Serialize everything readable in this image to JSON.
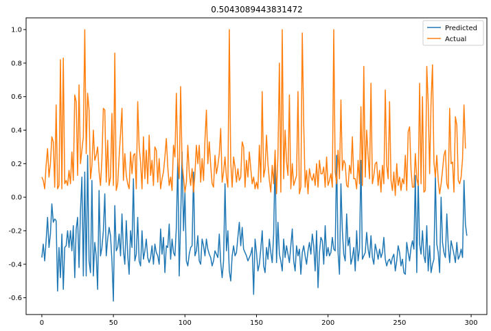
{
  "chart_data": {
    "type": "line",
    "title": "0.5043089443831472",
    "xlabel": "",
    "ylabel": "",
    "xlim": [
      -11,
      311
    ],
    "ylim": [
      -0.7,
      1.07
    ],
    "xticks": [
      0,
      50,
      100,
      150,
      200,
      250,
      300
    ],
    "yticks": [
      -0.6,
      -0.4,
      -0.2,
      0.0,
      0.2,
      0.4,
      0.6,
      0.8,
      1.0
    ],
    "grid": false,
    "legend": "top-right",
    "series": [
      {
        "name": "Predicted",
        "color": "#1f77b4",
        "values": [
          -0.36,
          -0.28,
          -0.38,
          -0.26,
          -0.12,
          -0.3,
          -0.22,
          -0.04,
          -0.15,
          -0.13,
          -0.14,
          -0.56,
          -0.3,
          -0.48,
          -0.22,
          -0.55,
          -0.3,
          -0.29,
          -0.2,
          -0.3,
          -0.2,
          -0.32,
          -0.17,
          -0.48,
          -0.19,
          -0.12,
          -0.42,
          -0.08,
          0.12,
          -0.47,
          0.15,
          -0.47,
          0.25,
          -0.38,
          -0.45,
          0.1,
          -0.47,
          -0.27,
          -0.35,
          -0.55,
          0.04,
          -0.35,
          -0.3,
          -0.2,
          0.02,
          -0.35,
          -0.25,
          -0.18,
          -0.23,
          -0.38,
          -0.62,
          -0.05,
          -0.32,
          -0.3,
          -0.22,
          -0.35,
          -0.1,
          -0.32,
          -0.4,
          -0.14,
          -0.34,
          -0.46,
          -0.2,
          -0.3,
          0.11,
          -0.38,
          -0.34,
          -0.12,
          -0.38,
          -0.41,
          -0.2,
          -0.37,
          -0.32,
          -0.25,
          -0.36,
          -0.39,
          -0.36,
          -0.29,
          -0.4,
          -0.28,
          -0.33,
          -0.35,
          -0.4,
          -0.19,
          -0.34,
          -0.24,
          -0.45,
          -0.29,
          -0.3,
          -0.16,
          -0.37,
          -0.25,
          -0.33,
          -0.35,
          -0.18,
          0.23,
          -0.47,
          -0.14,
          0.27,
          -0.2,
          0.03,
          -0.38,
          -0.41,
          -0.34,
          -0.3,
          -0.29,
          0.15,
          -0.35,
          -0.32,
          -0.23,
          -0.38,
          -0.4,
          -0.25,
          -0.29,
          -0.35,
          -0.25,
          -0.31,
          -0.34,
          -0.36,
          -0.41,
          -0.38,
          -0.32,
          -0.34,
          -0.36,
          -0.22,
          -0.39,
          -0.48,
          -0.38,
          0.08,
          -0.32,
          -0.2,
          -0.44,
          -0.5,
          -0.35,
          -0.29,
          -0.35,
          -0.33,
          -0.24,
          -0.15,
          -0.29,
          -0.18,
          -0.31,
          -0.33,
          -0.35,
          -0.38,
          -0.36,
          -0.34,
          -0.3,
          -0.58,
          -0.25,
          -0.33,
          -0.44,
          -0.4,
          -0.31,
          -0.2,
          -0.41,
          -0.45,
          -0.3,
          -0.37,
          -0.25,
          -0.33,
          -0.39,
          -0.22,
          0.25,
          -0.39,
          -0.15,
          -0.34,
          -0.38,
          -0.44,
          -0.25,
          -0.36,
          -0.29,
          -0.34,
          -0.39,
          -0.29,
          -0.19,
          -0.38,
          -0.44,
          -0.29,
          -0.35,
          -0.31,
          -0.46,
          -0.33,
          -0.29,
          -0.35,
          -0.4,
          -0.32,
          -0.27,
          -0.34,
          -0.22,
          -0.29,
          -0.44,
          -0.2,
          -0.54,
          -0.33,
          -0.24,
          -0.26,
          -0.4,
          -0.17,
          -0.35,
          -0.3,
          -0.35,
          -0.33,
          -0.24,
          -0.31,
          -0.32,
          0.25,
          -0.33,
          -0.46,
          0.08,
          -0.2,
          -0.34,
          -0.38,
          -0.1,
          -0.29,
          -0.24,
          -0.4,
          -0.36,
          -0.3,
          -0.44,
          -0.2,
          -0.38,
          -0.31,
          0.22,
          -0.37,
          -0.35,
          -0.33,
          -0.21,
          -0.31,
          -0.36,
          -0.23,
          -0.36,
          -0.4,
          -0.28,
          -0.32,
          -0.37,
          -0.31,
          -0.36,
          -0.33,
          -0.24,
          -0.37,
          -0.41,
          -0.38,
          -0.37,
          -0.4,
          -0.36,
          -0.34,
          -0.44,
          -0.38,
          -0.29,
          -0.33,
          -0.41,
          -0.37,
          -0.45,
          -0.46,
          -0.27,
          -0.33,
          -0.38,
          -0.3,
          -0.26,
          -0.31,
          0.13,
          -0.45,
          0.1,
          -0.28,
          -0.34,
          -0.2,
          -0.35,
          -0.39,
          -0.17,
          -0.44,
          -0.29,
          -0.45,
          -0.4,
          -0.37,
          0.13,
          -0.28,
          -0.33,
          -0.45,
          0.0,
          -0.27,
          -0.33,
          -0.36,
          -0.1,
          -0.29,
          -0.39,
          -0.26,
          -0.3,
          -0.34,
          -0.39,
          -0.27,
          -0.37,
          -0.35,
          -0.31,
          -0.36,
          0.1,
          -0.16,
          -0.23
        ]
      },
      {
        "name": "Actual",
        "color": "#ff7f0e",
        "values": [
          0.12,
          0.1,
          0.05,
          0.19,
          0.29,
          0.12,
          0.2,
          0.36,
          0.33,
          0.06,
          0.55,
          0.05,
          0.07,
          0.82,
          0.05,
          0.83,
          0.08,
          0.1,
          0.07,
          0.16,
          0.08,
          0.27,
          0.1,
          0.61,
          0.57,
          0.13,
          0.67,
          0.2,
          0.28,
          0.36,
          1.0,
          0.26,
          0.62,
          0.52,
          0.11,
          0.19,
          0.4,
          0.22,
          0.25,
          0.3,
          0.15,
          0.07,
          0.23,
          0.53,
          0.52,
          0.09,
          0.34,
          0.07,
          0.12,
          0.5,
          0.07,
          0.86,
          0.04,
          0.08,
          0.24,
          0.38,
          0.53,
          0.1,
          0.26,
          0.13,
          0.08,
          0.05,
          0.27,
          0.14,
          0.25,
          0.26,
          0.05,
          0.57,
          0.3,
          0.21,
          0.05,
          0.36,
          0.11,
          0.28,
          0.08,
          0.37,
          0.13,
          0.22,
          0.07,
          0.3,
          0.28,
          0.09,
          0.23,
          0.05,
          0.11,
          0.15,
          0.24,
          0.35,
          0.18,
          0.07,
          0.12,
          0.04,
          0.31,
          0.24,
          0.62,
          0.21,
          0.11,
          0.66,
          0.2,
          0.12,
          0.03,
          0.09,
          0.31,
          0.15,
          0.07,
          0.17,
          0.03,
          0.14,
          0.31,
          0.2,
          0.31,
          0.09,
          0.23,
          0.1,
          0.34,
          0.52,
          0.2,
          0.33,
          0.19,
          0.08,
          0.06,
          0.25,
          0.14,
          0.19,
          0.26,
          0.41,
          0.09,
          0.15,
          0.24,
          0.12,
          0.06,
          1.0,
          0.21,
          0.06,
          0.24,
          0.18,
          0.09,
          0.17,
          0.1,
          0.12,
          0.33,
          0.3,
          0.06,
          0.22,
          0.12,
          0.27,
          0.17,
          0.08,
          0.12,
          0.05,
          0.09,
          0.05,
          0.31,
          0.09,
          0.63,
          0.12,
          0.17,
          0.37,
          0.2,
          0.1,
          0.03,
          0.19,
          0.08,
          0.28,
          0.02,
          0.25,
          0.8,
          0.03,
          1.0,
          0.11,
          0.4,
          0.21,
          0.13,
          0.61,
          0.05,
          0.2,
          0.07,
          0.1,
          0.13,
          0.63,
          0.02,
          0.06,
          0.98,
          0.44,
          0.06,
          0.16,
          0.02,
          0.17,
          0.12,
          0.1,
          0.14,
          0.07,
          0.2,
          0.06,
          0.22,
          0.14,
          0.14,
          0.18,
          0.06,
          0.24,
          0.07,
          0.1,
          0.14,
          0.06,
          1.0,
          0.15,
          0.08,
          0.28,
          0.11,
          0.58,
          0.16,
          0.22,
          0.2,
          0.07,
          0.06,
          0.19,
          0.14,
          0.36,
          0.11,
          0.11,
          0.05,
          0.22,
          0.08,
          0.54,
          0.07,
          0.78,
          0.12,
          0.4,
          0.25,
          0.11,
          0.68,
          0.08,
          0.13,
          0.2,
          0.21,
          0.07,
          0.16,
          0.03,
          0.19,
          0.08,
          0.64,
          0.19,
          0.11,
          0.57,
          0.1,
          0.04,
          0.15,
          0.01,
          0.2,
          0.07,
          0.12,
          0.04,
          0.11,
          0.08,
          0.25,
          0.04,
          0.39,
          0.42,
          0.16,
          0.06,
          0.06,
          0.26,
          0.11,
          0.07,
          0.68,
          0.08,
          0.6,
          0.03,
          0.04,
          0.78,
          0.56,
          0.14,
          0.57,
          0.79,
          0.21,
          0.12,
          0.25,
          0.1,
          0.02,
          0.08,
          0.16,
          0.25,
          0.28,
          0.08,
          0.05,
          0.53,
          0.2,
          0.21,
          0.03,
          0.48,
          0.43,
          0.1,
          0.08,
          0.12,
          0.23,
          0.55,
          0.29
        ]
      }
    ]
  }
}
